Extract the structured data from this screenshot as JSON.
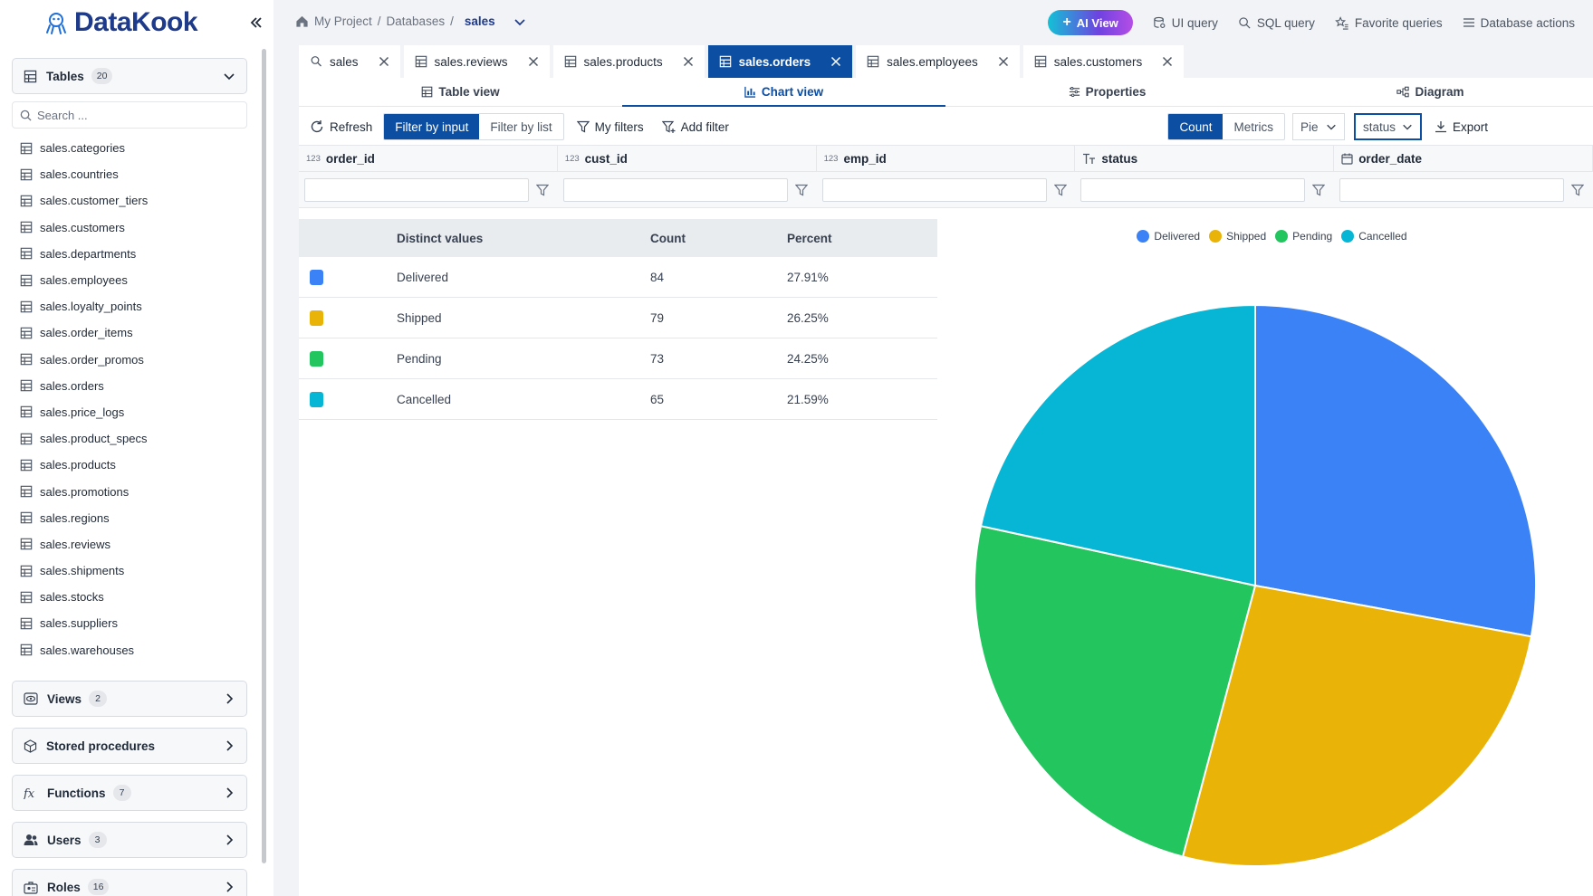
{
  "app": {
    "name": "DataKook"
  },
  "sidebar": {
    "tables_label": "Tables",
    "tables_count": "20",
    "search_placeholder": "Search ...",
    "tables": [
      "sales.categories",
      "sales.countries",
      "sales.customer_tiers",
      "sales.customers",
      "sales.departments",
      "sales.employees",
      "sales.loyalty_points",
      "sales.order_items",
      "sales.order_promos",
      "sales.orders",
      "sales.price_logs",
      "sales.product_specs",
      "sales.products",
      "sales.promotions",
      "sales.regions",
      "sales.reviews",
      "sales.shipments",
      "sales.stocks",
      "sales.suppliers",
      "sales.warehouses"
    ],
    "sections": [
      {
        "label": "Views",
        "count": "2",
        "icon": "eye-icon"
      },
      {
        "label": "Stored procedures",
        "count": "",
        "icon": "cube-icon"
      },
      {
        "label": "Functions",
        "count": "7",
        "icon": "function-icon"
      },
      {
        "label": "Users",
        "count": "3",
        "icon": "users-icon"
      },
      {
        "label": "Roles",
        "count": "16",
        "icon": "roles-icon"
      }
    ]
  },
  "breadcrumb": {
    "project": "My Project",
    "sep1": "/",
    "databases": "Databases",
    "sep2": "/",
    "current": "sales"
  },
  "top_actions": {
    "ai_view": "AI View",
    "ui_query": "UI query",
    "sql_query": "SQL query",
    "favorite_queries": "Favorite queries",
    "database_actions": "Database actions"
  },
  "tabs": [
    {
      "label": "sales",
      "icon": "sql-icon",
      "active": false
    },
    {
      "label": "sales.reviews",
      "icon": "table-icon",
      "active": false
    },
    {
      "label": "sales.products",
      "icon": "table-icon",
      "active": false
    },
    {
      "label": "sales.orders",
      "icon": "table-icon",
      "active": true
    },
    {
      "label": "sales.employees",
      "icon": "table-icon",
      "active": false
    },
    {
      "label": "sales.customers",
      "icon": "table-icon",
      "active": false
    }
  ],
  "view_tabs": {
    "table": "Table view",
    "chart": "Chart view",
    "properties": "Properties",
    "diagram": "Diagram"
  },
  "toolbar": {
    "refresh": "Refresh",
    "filter_by_input": "Filter by input",
    "filter_by_list": "Filter by list",
    "my_filters": "My filters",
    "add_filter": "Add filter",
    "count": "Count",
    "metrics": "Metrics",
    "chart_type": "Pie",
    "group_column": "status",
    "export": "Export"
  },
  "columns": [
    {
      "type": "123",
      "name": "order_id"
    },
    {
      "type": "123",
      "name": "cust_id"
    },
    {
      "type": "123",
      "name": "emp_id"
    },
    {
      "type": "Tt",
      "name": "status"
    },
    {
      "type": "cal",
      "name": "order_date"
    }
  ],
  "distinct_table": {
    "headers": {
      "value": "Distinct values",
      "count": "Count",
      "percent": "Percent"
    },
    "rows": [
      {
        "value": "Delivered",
        "count": "84",
        "percent": "27.91%",
        "color": "#3b82f6"
      },
      {
        "value": "Shipped",
        "count": "79",
        "percent": "26.25%",
        "color": "#eab308"
      },
      {
        "value": "Pending",
        "count": "73",
        "percent": "24.25%",
        "color": "#22c55e"
      },
      {
        "value": "Cancelled",
        "count": "65",
        "percent": "21.59%",
        "color": "#06b6d4"
      }
    ]
  },
  "chart_data": {
    "type": "pie",
    "categories": [
      "Delivered",
      "Shipped",
      "Pending",
      "Cancelled"
    ],
    "values": [
      84,
      79,
      73,
      65
    ],
    "colors": [
      "#3b82f6",
      "#eab308",
      "#22c55e",
      "#06b6d4"
    ],
    "legend": "top-center",
    "title": ""
  }
}
